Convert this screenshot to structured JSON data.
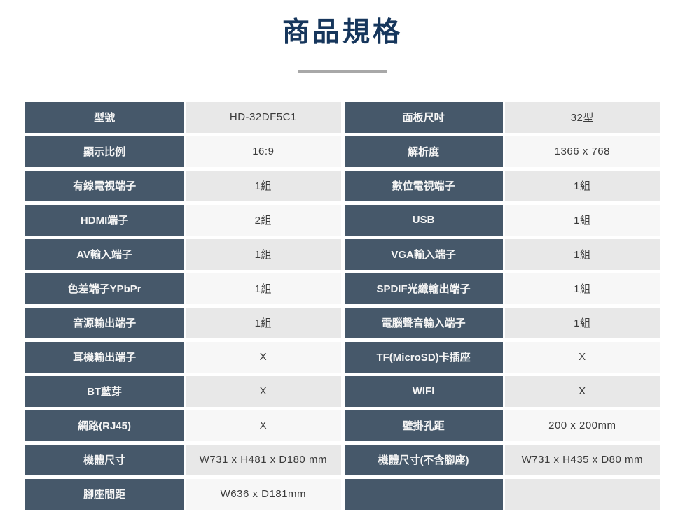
{
  "header": {
    "title": "商品規格"
  },
  "colors": {
    "title": "#16365c",
    "label_bg": "#46586a",
    "label_text": "#f5f5f5",
    "value_bg_gray": "#e8e8e8",
    "value_bg_light": "#f7f7f7",
    "value_text": "#3b3b3b",
    "divider": "#a8a8a8"
  },
  "tables": [
    {
      "name": "left",
      "rows": [
        {
          "label": "型號",
          "value": "HD-32DF5C1"
        },
        {
          "label": "顯示比例",
          "value": "16:9"
        },
        {
          "label": "有線電視端子",
          "value": "1組"
        },
        {
          "label": "HDMI端子",
          "value": "2組"
        },
        {
          "label": "AV輸入端子",
          "value": "1組"
        },
        {
          "label": "色差端子YPbPr",
          "value": "1組"
        },
        {
          "label": "音源輸出端子",
          "value": "1組"
        },
        {
          "label": "耳機輸出端子",
          "value": "X"
        },
        {
          "label": "BT藍芽",
          "value": "X"
        },
        {
          "label": "網路(RJ45)",
          "value": "X"
        },
        {
          "label": "機體尺寸",
          "value": "W731 x H481 x D180 mm"
        },
        {
          "label": "腳座間距",
          "value": "W636 x D181mm"
        }
      ]
    },
    {
      "name": "right",
      "rows": [
        {
          "label": "面板尺吋",
          "value": "32型"
        },
        {
          "label": "解析度",
          "value": "1366 x 768"
        },
        {
          "label": "數位電視端子",
          "value": "1組"
        },
        {
          "label": "USB",
          "value": "1組"
        },
        {
          "label": "VGA輸入端子",
          "value": "1組"
        },
        {
          "label": "SPDIF光纖輸出端子",
          "value": "1組"
        },
        {
          "label": "電腦聲音輸入端子",
          "value": "1組"
        },
        {
          "label": "TF(MicroSD)卡插座",
          "value": "X"
        },
        {
          "label": "WIFI",
          "value": "X"
        },
        {
          "label": "壁掛孔距",
          "value": "200 x 200mm"
        },
        {
          "label": "機體尺寸(不含腳座)",
          "value": "W731 x H435 x D80 mm"
        },
        {
          "label": "",
          "value": "",
          "empty": true
        }
      ]
    }
  ]
}
